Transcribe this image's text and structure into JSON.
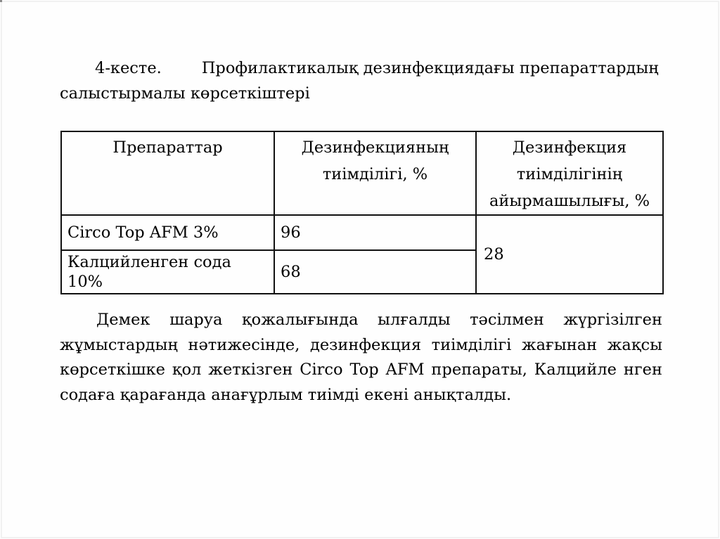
{
  "colors": {
    "text": "#000000",
    "table_border": "#111111",
    "page_frame": "#f1f1f1",
    "background": "#fefefe"
  },
  "caption": {
    "number": "4-кесте.",
    "line1": "Профилактикалық дезинфекциядағы препараттардың",
    "line2": "салыстырмалы көрсеткіштері"
  },
  "table": {
    "headers": [
      "Препараттар",
      "Дезинфекцияның тиімділігі, %",
      "Дезинфекция тиімділігінің айырмашылығы, %"
    ],
    "rows": [
      {
        "preparation": "Circo Top AFM 3%",
        "efficiency": "96"
      },
      {
        "preparation": "Калцийленген сода 10%",
        "efficiency": "68"
      }
    ],
    "difference": "28"
  },
  "paragraph": "Демек шаруа қожалығында ылғалды тәсілмен жүргізілген жұмыстардың нәтижесінде, дезинфекция тиімділігі жағынан жақсы көрсеткішке қол жеткізген Circo Top AFM препараты, Калцийле нген содаға қарағанда анағұрлым тиімді екені анықталды."
}
